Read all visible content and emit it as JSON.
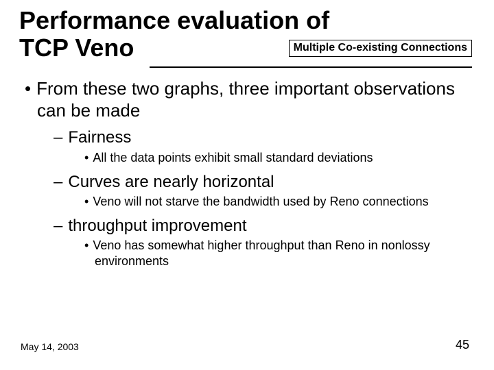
{
  "title_line1": "Performance evaluation of",
  "title_line2": "TCP Veno",
  "badge": "Multiple Co-existing Connections",
  "body": {
    "l1": "From these two graphs, three important observations can be made",
    "l2a": "Fairness",
    "l3a": "All the data points exhibit small standard deviations",
    "l2b": "Curves are nearly horizontal",
    "l3b": "Veno will not starve the bandwidth used by Reno connections",
    "l2c": "throughput improvement",
    "l3c": "Veno has somewhat higher throughput than Reno in nonlossy environments"
  },
  "footer": {
    "date": "May 14, 2003",
    "page": "45"
  },
  "style": {
    "background": "#ffffff",
    "text_color": "#000000",
    "rule_color": "#000000",
    "badge_border": "#000000",
    "title_fontsize": 36,
    "lvl1_fontsize": 26,
    "lvl2_fontsize": 24,
    "lvl3_fontsize": 18,
    "footer_fontsize": 14,
    "page_fontsize": 18
  }
}
